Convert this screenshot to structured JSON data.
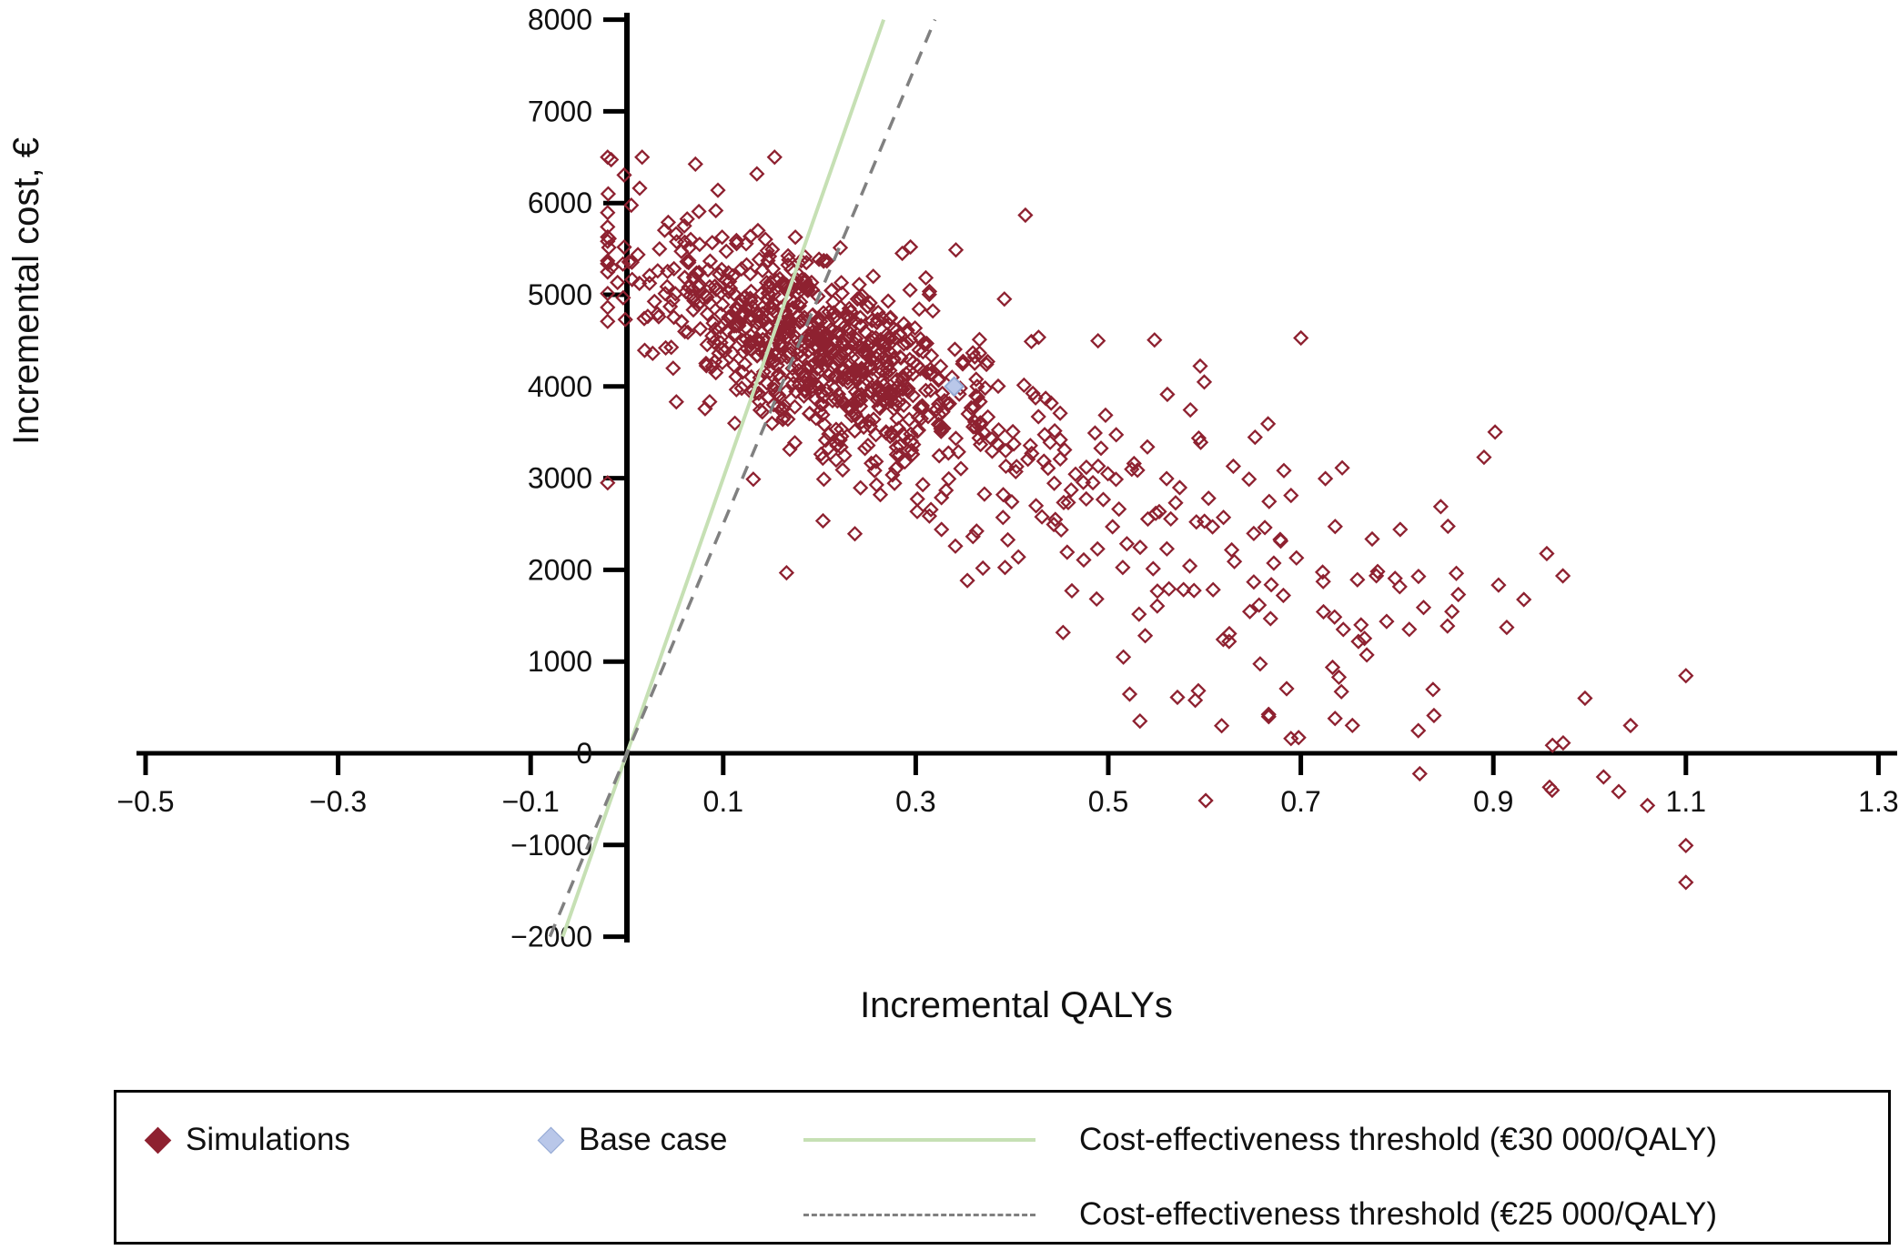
{
  "chart_data": {
    "type": "scatter",
    "title": "",
    "xlabel": "Incremental QALYs",
    "ylabel": "Incremental cost, €",
    "xlim": [
      -0.5,
      1.3
    ],
    "ylim": [
      -2000,
      8000
    ],
    "grid": false,
    "x_ticks": [
      -0.5,
      -0.3,
      -0.1,
      0.1,
      0.3,
      0.5,
      0.7,
      0.9,
      1.1,
      1.3
    ],
    "x_tick_labels": [
      "−0.5",
      "−0.3",
      "−0.1",
      "0.1",
      "0.3",
      "0.5",
      "0.7",
      "0.9",
      "1.1",
      "1.3"
    ],
    "y_ticks": [
      -2000,
      -1000,
      0,
      1000,
      2000,
      3000,
      4000,
      5000,
      6000,
      7000,
      8000
    ],
    "y_tick_labels": [
      "−2000",
      "−1000",
      "0",
      "1000",
      "2000",
      "3000",
      "4000",
      "5000",
      "6000",
      "7000",
      "8000"
    ],
    "axis_color": "#000000",
    "series": [
      {
        "name": "Simulations",
        "marker": "open-diamond",
        "color": "#8e2130",
        "count": 1000,
        "distribution": {
          "note": "Monte-Carlo cloud approximated from pixels: dense cluster near (0.2, 4400) with negative cost/QALY correlation, sparse tail toward (1.1, -1400)",
          "seed": 20240612,
          "components": [
            {
              "weight": 0.74,
              "x_mean": 0.2,
              "x_sd": 0.095,
              "y_intercept": 5350,
              "y_slope": -4800,
              "y_noise_sd": 470
            },
            {
              "weight": 0.26,
              "x_mean": 0.5,
              "x_sd": 0.26,
              "y_intercept": 5350,
              "y_slope": -4800,
              "y_noise_sd": 1050
            }
          ],
          "x_clip": [
            -0.02,
            1.1
          ],
          "y_clip": [
            -1600,
            6500
          ]
        }
      },
      {
        "name": "Base case",
        "marker": "filled-diamond",
        "color": "#b9c7e9",
        "edge_color": "#93a9d4",
        "points": [
          [
            0.34,
            4000
          ]
        ]
      }
    ],
    "reference_lines": [
      {
        "name": "Cost-effectiveness threshold (€30 000/QALY)",
        "slope": 30000,
        "intercept": 0,
        "style": "solid",
        "color": "#c6e0b4",
        "width": 4
      },
      {
        "name": "Cost-effectiveness threshold (€25 000/QALY)",
        "slope": 25000,
        "intercept": 0,
        "style": "dashed",
        "color": "#808080",
        "width": 3.5
      }
    ],
    "legend_position": "bottom"
  },
  "legend": {
    "items": [
      {
        "label": "Simulations",
        "swatch": "diamond",
        "color": "#8e2130"
      },
      {
        "label": "Base case",
        "swatch": "diamond",
        "color": "#b9c7e9"
      },
      {
        "label": "Cost-effectiveness threshold (€30 000/QALY)",
        "swatch": "line-solid",
        "color": "#c6e0b4"
      },
      {
        "label": "Cost-effectiveness threshold (€25 000/QALY)",
        "swatch": "line-dashed",
        "color": "#808080"
      }
    ]
  }
}
